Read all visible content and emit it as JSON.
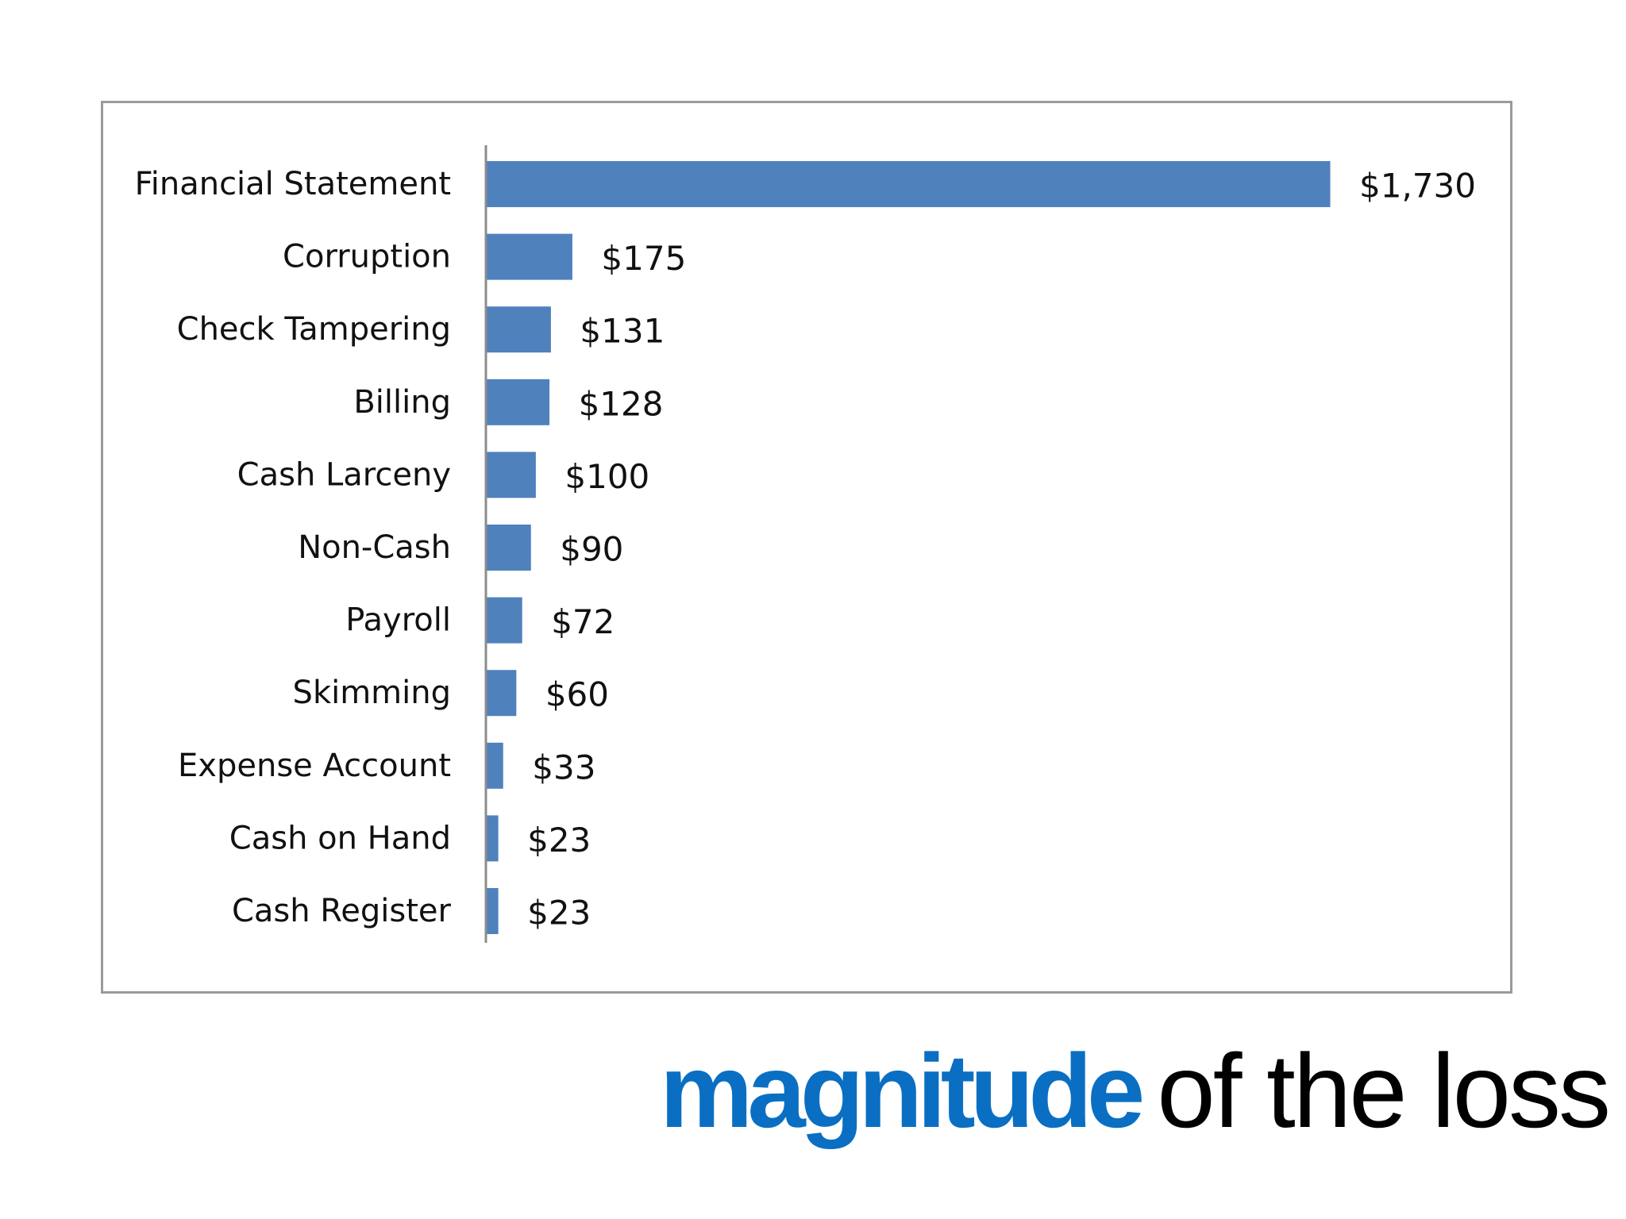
{
  "slide": {
    "title_emphasis": "magnitude",
    "title_rest": "of the loss",
    "title_emphasis_color": "#0a6fc2",
    "title_rest_color": "#000000"
  },
  "chart_data": {
    "type": "bar",
    "orientation": "horizontal",
    "categories": [
      "Financial Statement",
      "Corruption",
      "Check Tampering",
      "Billing",
      "Cash Larceny",
      "Non-Cash",
      "Payroll",
      "Skimming",
      "Expense Account",
      "Cash on Hand",
      "Cash Register"
    ],
    "values": [
      1730,
      175,
      131,
      128,
      100,
      90,
      72,
      60,
      33,
      23,
      23
    ],
    "data_labels": [
      "$1,730",
      "$175",
      "$131",
      "$128",
      "$100",
      "$90",
      "$72",
      "$60",
      "$33",
      "$23",
      "$23"
    ],
    "title": "",
    "xlabel": "",
    "ylabel": "",
    "xlim": [
      0,
      1730
    ],
    "grid": false,
    "legend": "none",
    "bar_color": "#4f81bd",
    "frame_color": "#9a9a9a"
  }
}
